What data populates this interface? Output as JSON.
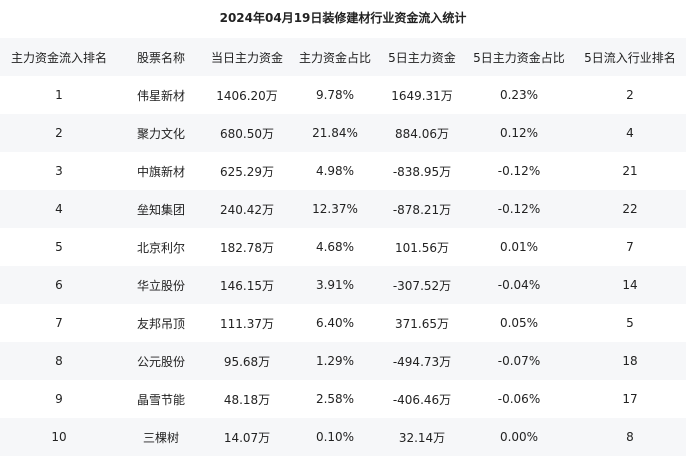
{
  "title": "2024年04月19日装修建材行业资金流入统计",
  "columns": [
    "主力资金流入排名",
    "股票名称",
    "当日主力资金",
    "主力资金占比",
    "5日主力资金",
    "5日主力资金占比",
    "5日流入行业排名"
  ],
  "rows": [
    [
      "1",
      "伟星新材",
      "1406.20万",
      "9.78%",
      "1649.31万",
      "0.23%",
      "2"
    ],
    [
      "2",
      "聚力文化",
      "680.50万",
      "21.84%",
      "884.06万",
      "0.12%",
      "4"
    ],
    [
      "3",
      "中旗新材",
      "625.29万",
      "4.98%",
      "-838.95万",
      "-0.12%",
      "21"
    ],
    [
      "4",
      "垒知集团",
      "240.42万",
      "12.37%",
      "-878.21万",
      "-0.12%",
      "22"
    ],
    [
      "5",
      "北京利尔",
      "182.78万",
      "4.68%",
      "101.56万",
      "0.01%",
      "7"
    ],
    [
      "6",
      "华立股份",
      "146.15万",
      "3.91%",
      "-307.52万",
      "-0.04%",
      "14"
    ],
    [
      "7",
      "友邦吊顶",
      "111.37万",
      "6.40%",
      "371.65万",
      "0.05%",
      "5"
    ],
    [
      "8",
      "公元股份",
      "95.68万",
      "1.29%",
      "-494.73万",
      "-0.07%",
      "18"
    ],
    [
      "9",
      "晶雪节能",
      "48.18万",
      "2.58%",
      "-406.46万",
      "-0.06%",
      "17"
    ],
    [
      "10",
      "三棵树",
      "14.07万",
      "0.10%",
      "32.14万",
      "0.00%",
      "8"
    ]
  ]
}
